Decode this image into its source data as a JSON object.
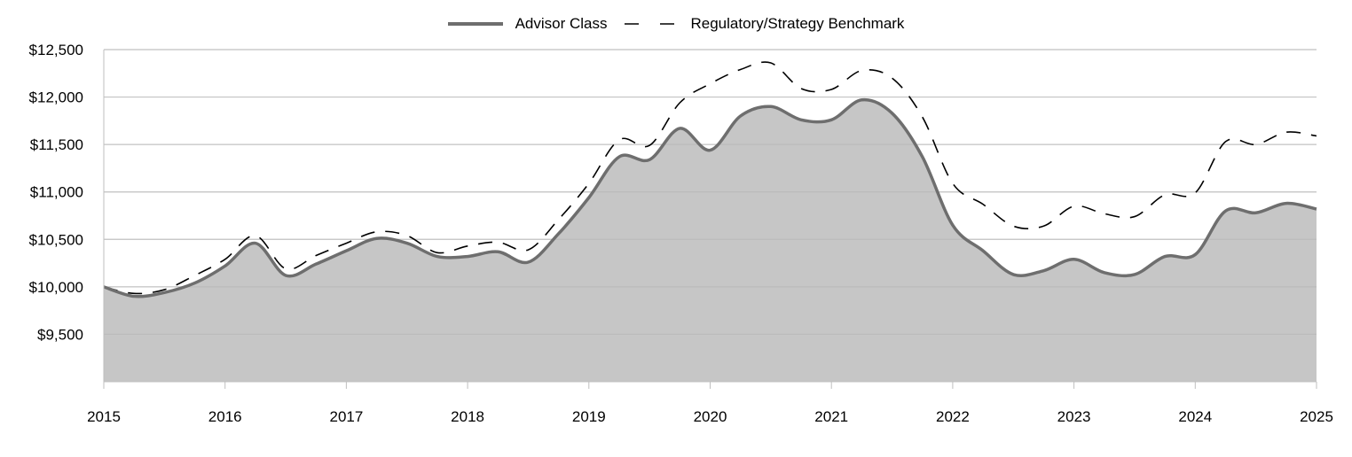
{
  "chart_data": {
    "type": "area",
    "title": "",
    "xlabel": "",
    "ylabel": "",
    "x_ticks": [
      "2015",
      "2016",
      "2017",
      "2018",
      "2019",
      "2020",
      "2021",
      "2022",
      "2023",
      "2024",
      "2025"
    ],
    "y_ticks": [
      {
        "value": 9500,
        "label": "$9,500"
      },
      {
        "value": 10000,
        "label": "$10,000"
      },
      {
        "value": 10500,
        "label": "$10,500"
      },
      {
        "value": 11000,
        "label": "$11,000"
      },
      {
        "value": 11500,
        "label": "$11,500"
      },
      {
        "value": 12000,
        "label": "$12,000"
      },
      {
        "value": 12500,
        "label": "$12,500"
      }
    ],
    "ylim": [
      9000,
      12500
    ],
    "xlim": [
      2015,
      2025
    ],
    "grid": "horizontal",
    "legend_position": "top-center",
    "x": [
      2015.0,
      2015.25,
      2015.5,
      2015.75,
      2016.0,
      2016.25,
      2016.5,
      2016.75,
      2017.0,
      2017.25,
      2017.5,
      2017.75,
      2018.0,
      2018.25,
      2018.5,
      2018.75,
      2019.0,
      2019.25,
      2019.5,
      2019.75,
      2020.0,
      2020.25,
      2020.5,
      2020.75,
      2021.0,
      2021.25,
      2021.5,
      2021.75,
      2022.0,
      2022.25,
      2022.5,
      2022.75,
      2023.0,
      2023.25,
      2023.5,
      2023.75,
      2024.0,
      2024.25,
      2024.5,
      2024.75,
      2025.0
    ],
    "series": [
      {
        "name": "Advisor Class",
        "style": "solid",
        "color": "#6e6e6e",
        "fill": "#c6c6c6",
        "values": [
          10000,
          9900,
          9940,
          10040,
          10220,
          10460,
          10120,
          10240,
          10380,
          10510,
          10460,
          10320,
          10320,
          10370,
          10260,
          10560,
          10940,
          11370,
          11340,
          11670,
          11440,
          11800,
          11900,
          11760,
          11760,
          11970,
          11830,
          11370,
          10650,
          10380,
          10130,
          10170,
          10290,
          10150,
          10130,
          10320,
          10340,
          10800,
          10780,
          10880,
          10820
        ]
      },
      {
        "name": "Regulatory/Strategy Benchmark",
        "style": "dashed",
        "color": "#000000",
        "values": [
          10000,
          9930,
          9970,
          10120,
          10290,
          10540,
          10190,
          10330,
          10460,
          10580,
          10540,
          10360,
          10430,
          10470,
          10390,
          10710,
          11090,
          11550,
          11490,
          11940,
          12140,
          12290,
          12360,
          12090,
          12080,
          12280,
          12200,
          11790,
          11090,
          10870,
          10640,
          10640,
          10850,
          10770,
          10740,
          10970,
          10990,
          11530,
          11500,
          11630,
          11590
        ]
      }
    ]
  }
}
